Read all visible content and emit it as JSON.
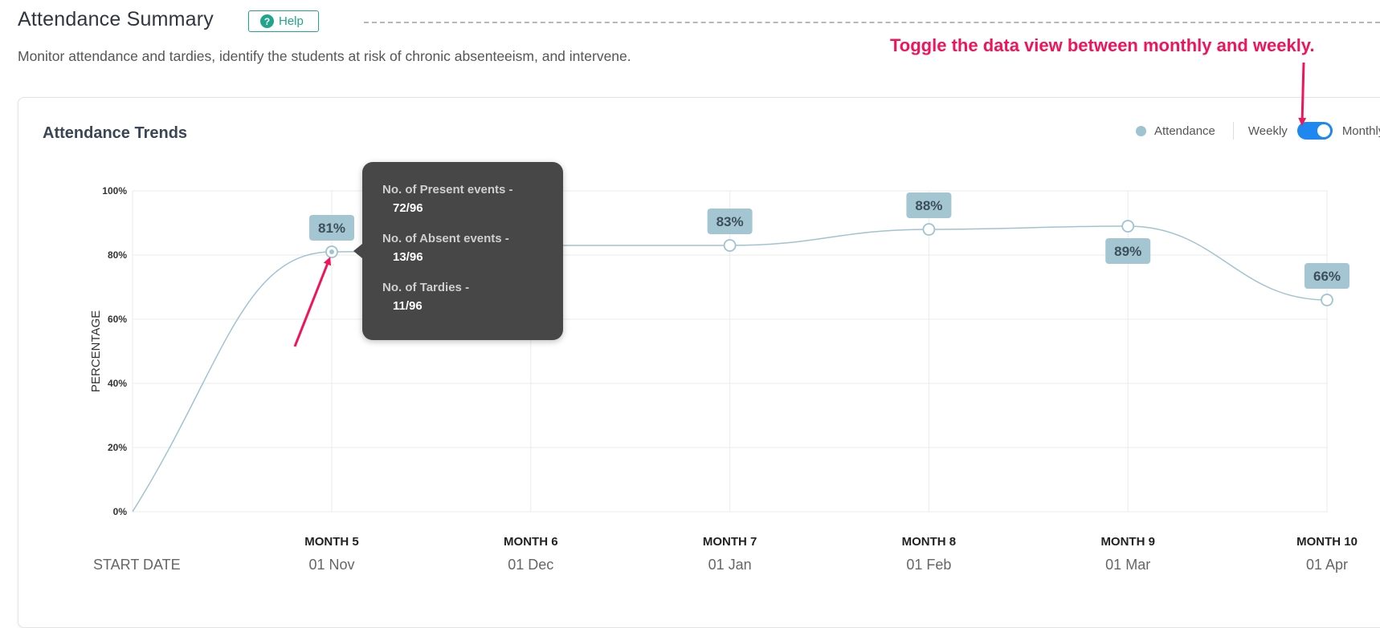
{
  "header": {
    "title": "Attendance Summary",
    "help_label": "Help",
    "help_icon": "?",
    "subtitle": "Monitor attendance and tardies, identify the students at risk of chronic absenteeism, and intervene."
  },
  "annotation": {
    "text": "Toggle the data view between monthly and weekly.",
    "color": "#f0145a"
  },
  "card": {
    "title": "Attendance Trends",
    "legend_label": "Attendance",
    "weekly_label": "Weekly",
    "monthly_label": "Monthly",
    "toggle_state": "monthly"
  },
  "tooltip": {
    "present_label": "No. of Present events -",
    "present_value": "72/96",
    "absent_label": "No. of Absent events -",
    "absent_value": "13/96",
    "tardies_label": "No. of Tardies -",
    "tardies_value": "11/96"
  },
  "chart_data": {
    "type": "line",
    "ylabel": "PERCENTAGE",
    "ylim": [
      0,
      100
    ],
    "yticks": [
      "0%",
      "20%",
      "40%",
      "60%",
      "80%",
      "100%"
    ],
    "start_date_label": "START DATE",
    "categories": [
      "MONTH 5",
      "MONTH 6",
      "MONTH 7",
      "MONTH 8",
      "MONTH 9",
      "MONTH 10"
    ],
    "start_dates": [
      "01 Nov",
      "01 Dec",
      "01 Jan",
      "01 Feb",
      "01 Mar",
      "01 Apr"
    ],
    "series": [
      {
        "name": "Attendance",
        "values": [
          81,
          83,
          83,
          88,
          89,
          66
        ],
        "data_labels": [
          "81%",
          "",
          "83%",
          "88%",
          "89%",
          "66%"
        ]
      }
    ],
    "color": "#9fc3d1",
    "grid": true,
    "legend": "top-right"
  }
}
